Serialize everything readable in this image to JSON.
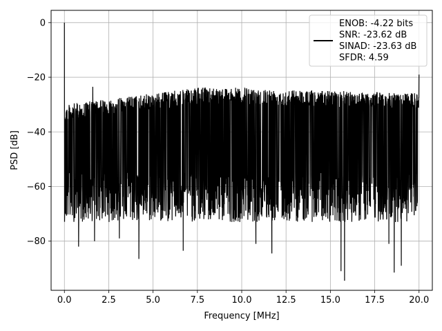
{
  "chart_data": {
    "type": "line",
    "xlabel": "Frequency [MHz]",
    "ylabel": "PSD [dB]",
    "xlim": [
      -0.75,
      20.75
    ],
    "ylim": [
      -98,
      4.5
    ],
    "xticks": [
      0.0,
      2.5,
      5.0,
      7.5,
      10.0,
      12.5,
      15.0,
      17.5,
      20.0
    ],
    "xtick_labels": [
      "0.0",
      "2.5",
      "5.0",
      "7.5",
      "10.0",
      "12.5",
      "15.0",
      "17.5",
      "20.0"
    ],
    "yticks": [
      0,
      -20,
      -40,
      -60,
      -80
    ],
    "ytick_labels": [
      "0",
      "−20",
      "−40",
      "−60",
      "−80"
    ],
    "grid": true,
    "legend_position": "top-right",
    "series": [
      {
        "color": "#000000",
        "peaks": [
          {
            "x": 0.0,
            "y": 0.0
          },
          {
            "x": 20.0,
            "y": -19.0
          },
          {
            "x": 1.6,
            "y": -23.5
          }
        ],
        "dips": [
          {
            "x": 0.8,
            "y": -82
          },
          {
            "x": 1.7,
            "y": -80
          },
          {
            "x": 3.1,
            "y": -79
          },
          {
            "x": 4.2,
            "y": -86.5
          },
          {
            "x": 6.7,
            "y": -83.5
          },
          {
            "x": 10.8,
            "y": -81
          },
          {
            "x": 11.7,
            "y": -84.5
          },
          {
            "x": 15.6,
            "y": -91
          },
          {
            "x": 15.8,
            "y": -94.5
          },
          {
            "x": 18.3,
            "y": -81
          },
          {
            "x": 18.6,
            "y": -91.5
          },
          {
            "x": 19.0,
            "y": -89
          }
        ]
      }
    ],
    "legend": {
      "lines": [
        "ENOB: -4.22 bits",
        "SNR: -23.62 dB",
        "SINAD: -23.63 dB",
        "SFDR: 4.59"
      ]
    }
  }
}
